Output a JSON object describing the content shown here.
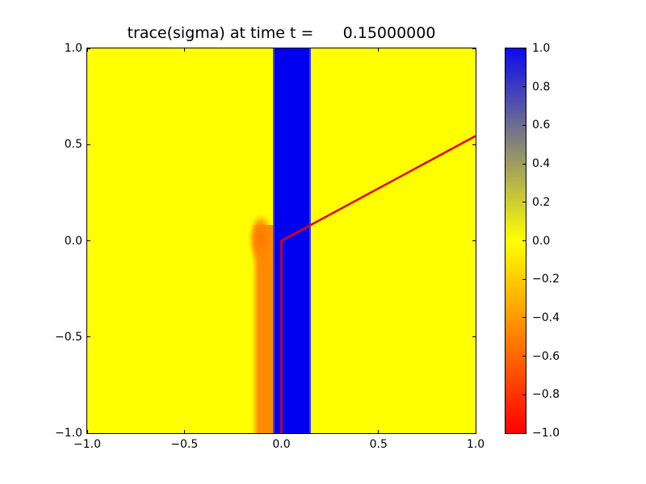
{
  "figure": {
    "background": "#ffffff"
  },
  "chart_data": {
    "type": "heatmap",
    "title": "trace(sigma) at time t =      0.15000000",
    "xlabel": "",
    "ylabel": "",
    "xlim": [
      -1.0,
      1.0
    ],
    "ylim": [
      -1.0,
      1.0
    ],
    "grid": false,
    "legend": false,
    "x_tick_values": [
      -1.0,
      -0.5,
      0.0,
      0.5,
      1.0
    ],
    "x_tick_labels": [
      "−1.0",
      "−0.5",
      "0.0",
      "0.5",
      "1.0"
    ],
    "y_tick_values": [
      1.0,
      0.5,
      0.0,
      -0.5,
      -1.0
    ],
    "y_tick_labels": [
      "1.0",
      "0.5",
      "0.0",
      "−0.5",
      "−1.0"
    ],
    "background_value": 0.0,
    "background_color": "#ffff00",
    "regions": [
      {
        "name": "orange-band",
        "x": [
          -0.15,
          -0.045
        ],
        "y": [
          -1.0,
          0.08
        ],
        "value": -0.45,
        "color": "#ff8c00"
      },
      {
        "name": "orange-blob",
        "x": [
          -0.165,
          -0.04
        ],
        "y": [
          -0.18,
          0.14
        ],
        "value": -0.55,
        "color": "#ff8800"
      },
      {
        "name": "blue-stripe",
        "x": [
          -0.043,
          0.15
        ],
        "y": [
          -1.0,
          1.0
        ],
        "value": 1.0,
        "color": "#0000f0"
      }
    ],
    "line": {
      "label": "interface line",
      "color": "#e60000",
      "width": 2.5,
      "points_xy": [
        [
          0.0,
          -1.0
        ],
        [
          0.0,
          0.0
        ],
        [
          1.0,
          0.545
        ]
      ]
    },
    "colorbar": {
      "vmin": -1.0,
      "vmax": 1.0,
      "tick_values": [
        1.0,
        0.8,
        0.6,
        0.4,
        0.2,
        0.0,
        -0.2,
        -0.4,
        -0.6,
        -0.8,
        -1.0
      ],
      "tick_labels": [
        "1.0",
        "0.8",
        "0.6",
        "0.4",
        "0.2",
        "0.0",
        "−0.2",
        "−0.4",
        "−0.6",
        "−0.8",
        "−1.0"
      ],
      "stops": [
        {
          "value": 1.0,
          "color": "#0b0bf0"
        },
        {
          "value": 0.0,
          "color": "#ffff00"
        },
        {
          "value": -1.0,
          "color": "#ff0000"
        }
      ]
    }
  }
}
